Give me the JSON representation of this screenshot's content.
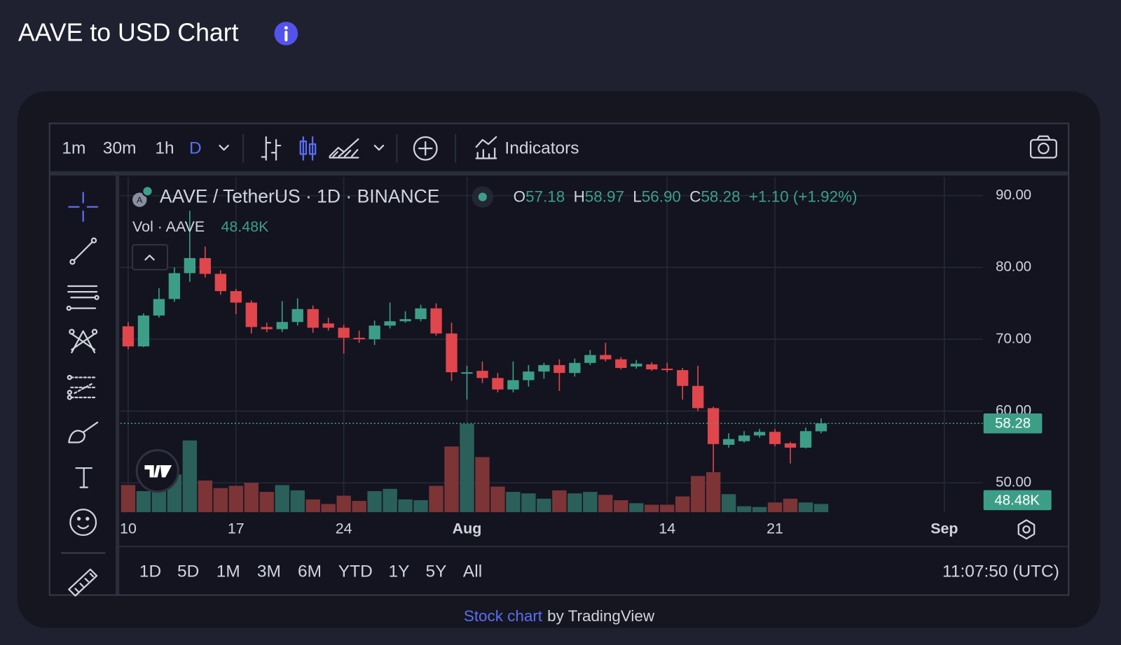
{
  "header": {
    "title": "AAVE to USD Chart"
  },
  "toolbar": {
    "intervals": [
      "1m",
      "30m",
      "1h",
      "D"
    ],
    "indicators": "Indicators"
  },
  "chart_data": {
    "type": "candlestick",
    "symbol": "AAVE / TetherUS · 1D · BINANCE",
    "legend": {
      "open_label": "O",
      "open": "57.18",
      "high_label": "H",
      "high": "58.97",
      "low_label": "L",
      "low": "56.90",
      "close_label": "C",
      "close": "58.28",
      "change": "+1.10 (+1.92%)"
    },
    "volume_title": "Vol · AAVE",
    "last_volume_label": "48.48K",
    "categories": [
      "07-10",
      "07-11",
      "07-12",
      "07-13",
      "07-14",
      "07-15",
      "07-16",
      "07-17",
      "07-18",
      "07-19",
      "07-20",
      "07-21",
      "07-22",
      "07-23",
      "07-24",
      "07-25",
      "07-26",
      "07-27",
      "07-28",
      "07-29",
      "07-30",
      "07-31",
      "08-01",
      "08-02",
      "08-03",
      "08-04",
      "08-05",
      "08-06",
      "08-07",
      "08-08",
      "08-09",
      "08-10",
      "08-11",
      "08-12",
      "08-13",
      "08-14",
      "08-15",
      "08-16",
      "08-17",
      "08-18",
      "08-19",
      "08-20",
      "08-21",
      "08-22",
      "08-23",
      "08-24"
    ],
    "open": [
      71.8,
      69.0,
      73.3,
      75.6,
      79.2,
      81.3,
      79.1,
      76.7,
      75.1,
      71.7,
      71.4,
      72.4,
      74.2,
      72.2,
      71.6,
      70.2,
      70.0,
      71.9,
      72.5,
      72.8,
      74.3,
      70.8,
      65.2,
      65.6,
      64.6,
      63.0,
      64.3,
      65.5,
      66.4,
      65.3,
      66.7,
      67.8,
      67.2,
      66.2,
      66.5,
      65.9,
      65.7,
      63.5,
      60.4,
      55.3,
      55.8,
      56.6,
      57.1,
      55.5,
      54.9,
      57.18
    ],
    "high": [
      72.4,
      73.6,
      77.1,
      80.0,
      87.9,
      82.9,
      79.6,
      77.0,
      75.4,
      72.3,
      75.3,
      75.7,
      74.7,
      73.0,
      72.0,
      71.2,
      72.6,
      75.1,
      73.9,
      74.8,
      75.0,
      72.3,
      66.3,
      66.9,
      65.3,
      66.9,
      66.4,
      66.7,
      67.2,
      67.3,
      68.5,
      69.5,
      67.5,
      67.1,
      66.8,
      66.7,
      66.0,
      66.3,
      60.6,
      56.9,
      57.2,
      57.5,
      57.5,
      55.7,
      57.7,
      58.97
    ],
    "low": [
      68.6,
      68.9,
      73.0,
      75.2,
      78.0,
      78.6,
      76.2,
      73.5,
      70.8,
      71.0,
      71.0,
      71.9,
      70.9,
      71.2,
      68.0,
      69.5,
      69.2,
      71.5,
      72.3,
      72.5,
      70.5,
      64.2,
      61.6,
      63.9,
      62.6,
      62.6,
      63.4,
      64.5,
      62.8,
      64.8,
      66.4,
      66.9,
      65.8,
      65.9,
      65.6,
      65.4,
      61.6,
      60.0,
      51.5,
      54.9,
      55.6,
      56.3,
      55.1,
      52.7,
      54.8,
      56.9
    ],
    "close": [
      69.0,
      73.3,
      75.6,
      79.2,
      81.3,
      79.1,
      76.7,
      75.1,
      71.7,
      71.4,
      72.4,
      74.2,
      71.6,
      71.6,
      70.2,
      70.0,
      71.9,
      72.5,
      72.8,
      74.3,
      70.8,
      65.4,
      65.4,
      64.6,
      63.0,
      64.3,
      65.5,
      66.4,
      65.3,
      66.7,
      67.8,
      67.2,
      66.0,
      66.6,
      65.8,
      65.7,
      63.5,
      60.4,
      55.4,
      56.1,
      56.6,
      57.1,
      55.4,
      54.9,
      57.2,
      58.28
    ],
    "volume": [
      158400,
      123200,
      132000,
      220000,
      418000,
      184800,
      140800,
      154000,
      171600,
      118800,
      158400,
      127600,
      74800,
      48400,
      96800,
      66000,
      123200,
      136400,
      74800,
      70400,
      154000,
      382800,
      514800,
      321200,
      149600,
      118800,
      110000,
      79200,
      127600,
      110000,
      118800,
      101200,
      70400,
      52800,
      44000,
      44000,
      92400,
      211200,
      233200,
      105600,
      35200,
      30800,
      57200,
      79200,
      57200,
      48480
    ],
    "up_color": "#3d9e88",
    "down_color": "#e0464c",
    "volume_up_color": "#2b5f5a",
    "volume_down_color": "#7c3437",
    "ylim": [
      45.9,
      92.4
    ],
    "yticks": [
      {
        "value": 50,
        "label": "50.00"
      },
      {
        "value": 60,
        "label": "60.00"
      },
      {
        "value": 70,
        "label": "70.00"
      },
      {
        "value": 80,
        "label": "80.00"
      },
      {
        "value": 90,
        "label": "90.00"
      }
    ],
    "volume_lim": [
      0,
      1943000
    ],
    "xticks": [
      {
        "value": "07-10",
        "label": "10"
      },
      {
        "value": "07-17",
        "label": "17"
      },
      {
        "value": "07-24",
        "label": "24"
      },
      {
        "value": "08-01",
        "label": "Aug"
      },
      {
        "value": "08-14",
        "label": "14"
      },
      {
        "value": "08-21",
        "label": "21"
      },
      {
        "value": "09-01",
        "label": "Sep"
      }
    ],
    "grid": true
  },
  "ranges": [
    "1D",
    "5D",
    "1M",
    "3M",
    "6M",
    "YTD",
    "1Y",
    "5Y",
    "All"
  ],
  "clock": "11:07:50 (UTC)",
  "footer": {
    "link": "Stock chart",
    "text": "by TradingView"
  }
}
